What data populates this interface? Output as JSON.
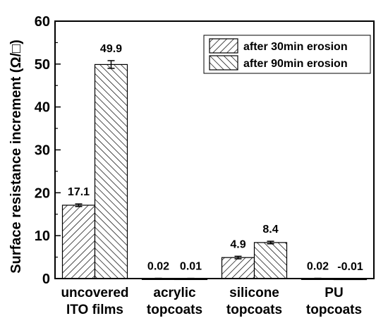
{
  "chart_data": {
    "type": "bar",
    "ylabel": "Surface resistance increment (Ω/□)",
    "ylim": [
      0,
      60
    ],
    "yticks": [
      0,
      10,
      20,
      30,
      40,
      50,
      60
    ],
    "categories": [
      [
        "uncovered",
        "ITO films"
      ],
      [
        "acrylic",
        "topcoats"
      ],
      [
        "silicone",
        "topcoats"
      ],
      [
        "PU",
        "topcoats"
      ]
    ],
    "series": [
      {
        "name": "after 30min erosion",
        "pattern": "hatch-forward",
        "values": [
          17.1,
          0.02,
          4.9,
          0.02
        ],
        "labels": [
          "17.1",
          "0.02",
          "4.9",
          "0.02"
        ],
        "errors": [
          0.3,
          0.05,
          0.3,
          0.05
        ]
      },
      {
        "name": "after 90min erosion",
        "pattern": "hatch-back",
        "values": [
          49.9,
          0.01,
          8.4,
          -0.01
        ],
        "labels": [
          "49.9",
          "0.01",
          "8.4",
          "-0.01"
        ],
        "errors": [
          0.9,
          0.05,
          0.3,
          0.05
        ]
      }
    ],
    "legend_position": "top-right",
    "grid": false
  }
}
